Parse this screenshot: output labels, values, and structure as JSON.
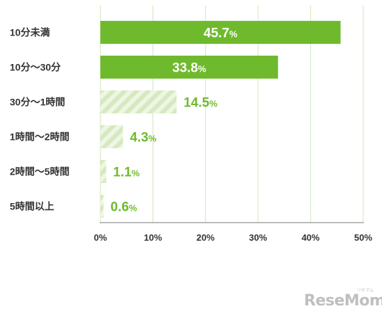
{
  "chart_data": {
    "type": "bar",
    "orientation": "horizontal",
    "categories": [
      "10分未満",
      "10分〜30分",
      "30分〜1時間",
      "1時間〜2時間",
      "2時間〜5時間",
      "5時間以上"
    ],
    "values": [
      45.7,
      33.8,
      14.5,
      4.3,
      1.1,
      0.6
    ],
    "value_labels": [
      "45.7%",
      "33.8%",
      "14.5%",
      "4.3%",
      "1.1%",
      "0.6%"
    ],
    "xlim": [
      0,
      50
    ],
    "xticks": [
      "0%",
      "10%",
      "20%",
      "30%",
      "40%",
      "50%"
    ],
    "grid": true,
    "colors": {
      "solid": "#6fba2c",
      "hatch": "#dcebc6",
      "label_outside": "#6fba2c",
      "label_inside": "#ffffff"
    },
    "hatched_from_index": 2
  },
  "watermark": {
    "text": "ReseMom",
    "ruby": "リセマム"
  }
}
